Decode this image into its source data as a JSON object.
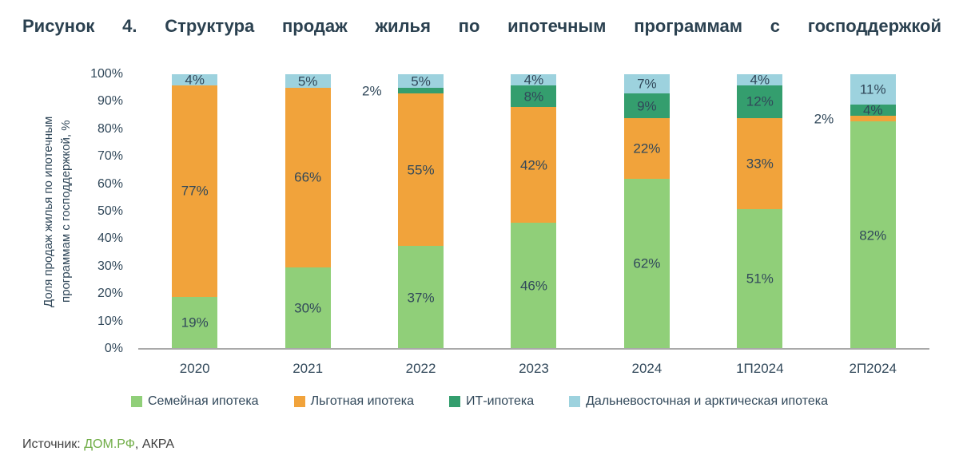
{
  "figure": {
    "title": "Рисунок 4. Структура продаж жилья по ипотечным программам с господдержкой"
  },
  "chart_data": {
    "type": "bar",
    "stacked": true,
    "percent_stacked": true,
    "title": "Рисунок 4. Структура продаж жилья по ипотечным программам с господдержкой",
    "categories": [
      "2020",
      "2021",
      "2022",
      "2023",
      "2024",
      "1П2024",
      "2П2024"
    ],
    "series": [
      {
        "name": "Семейная ипотека",
        "color": "#90CF79",
        "values": [
          19,
          30,
          37,
          46,
          62,
          51,
          82
        ]
      },
      {
        "name": "Льготная ипотека",
        "color": "#F1A33B",
        "values": [
          77,
          66,
          55,
          42,
          22,
          33,
          2
        ]
      },
      {
        "name": "ИТ-ипотека",
        "color": "#349E6E",
        "values": [
          0,
          0,
          2,
          8,
          9,
          12,
          4
        ]
      },
      {
        "name": "Дальневосточная и арктическая ипотека",
        "color": "#9DD2DE",
        "values": [
          4,
          5,
          5,
          4,
          7,
          4,
          11
        ]
      }
    ],
    "data_label_format": "{v}%",
    "data_label_inside_min": 3,
    "outside_label_side": "left",
    "ylabel": "Доля продаж жилья по ипотечным\nпрограммам с господдержкой, %",
    "yticks": [
      "0%",
      "10%",
      "20%",
      "30%",
      "40%",
      "50%",
      "60%",
      "70%",
      "80%",
      "90%",
      "100%"
    ],
    "ylim": [
      0,
      100
    ],
    "grid": false,
    "legend_position": "bottom",
    "axis_line_color": "#A9A9A9",
    "text_color": "#31485A"
  },
  "source": {
    "prefix": "Источник: ",
    "link_text": "ДОМ.РФ",
    "suffix": ", АКРА",
    "link_color": "#70AD47"
  }
}
